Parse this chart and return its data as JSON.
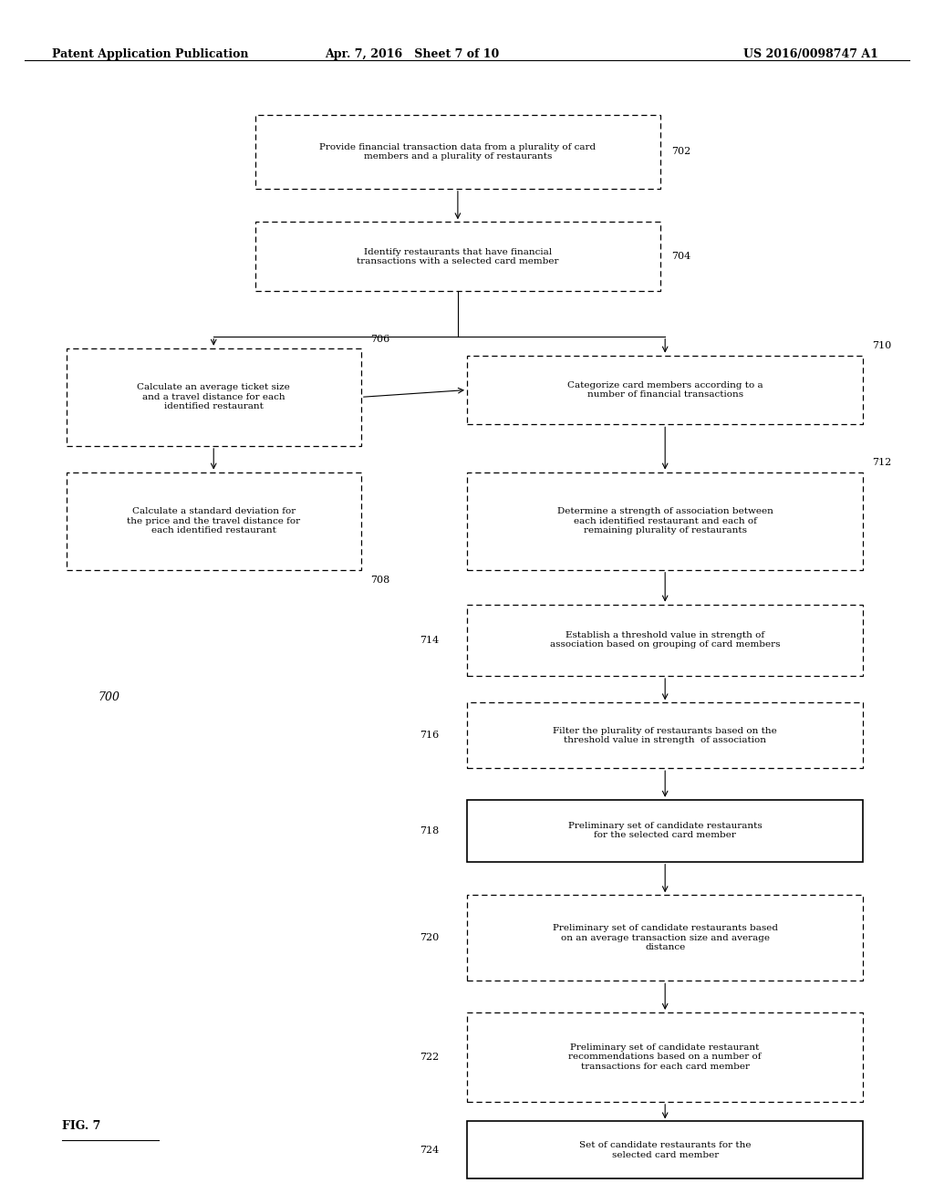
{
  "title_left": "Patent Application Publication",
  "title_mid": "Apr. 7, 2016   Sheet 7 of 10",
  "title_right": "US 2016/0098747 A1",
  "fig_label": "FIG. 7",
  "fig_number": "700",
  "background_color": "#ffffff"
}
